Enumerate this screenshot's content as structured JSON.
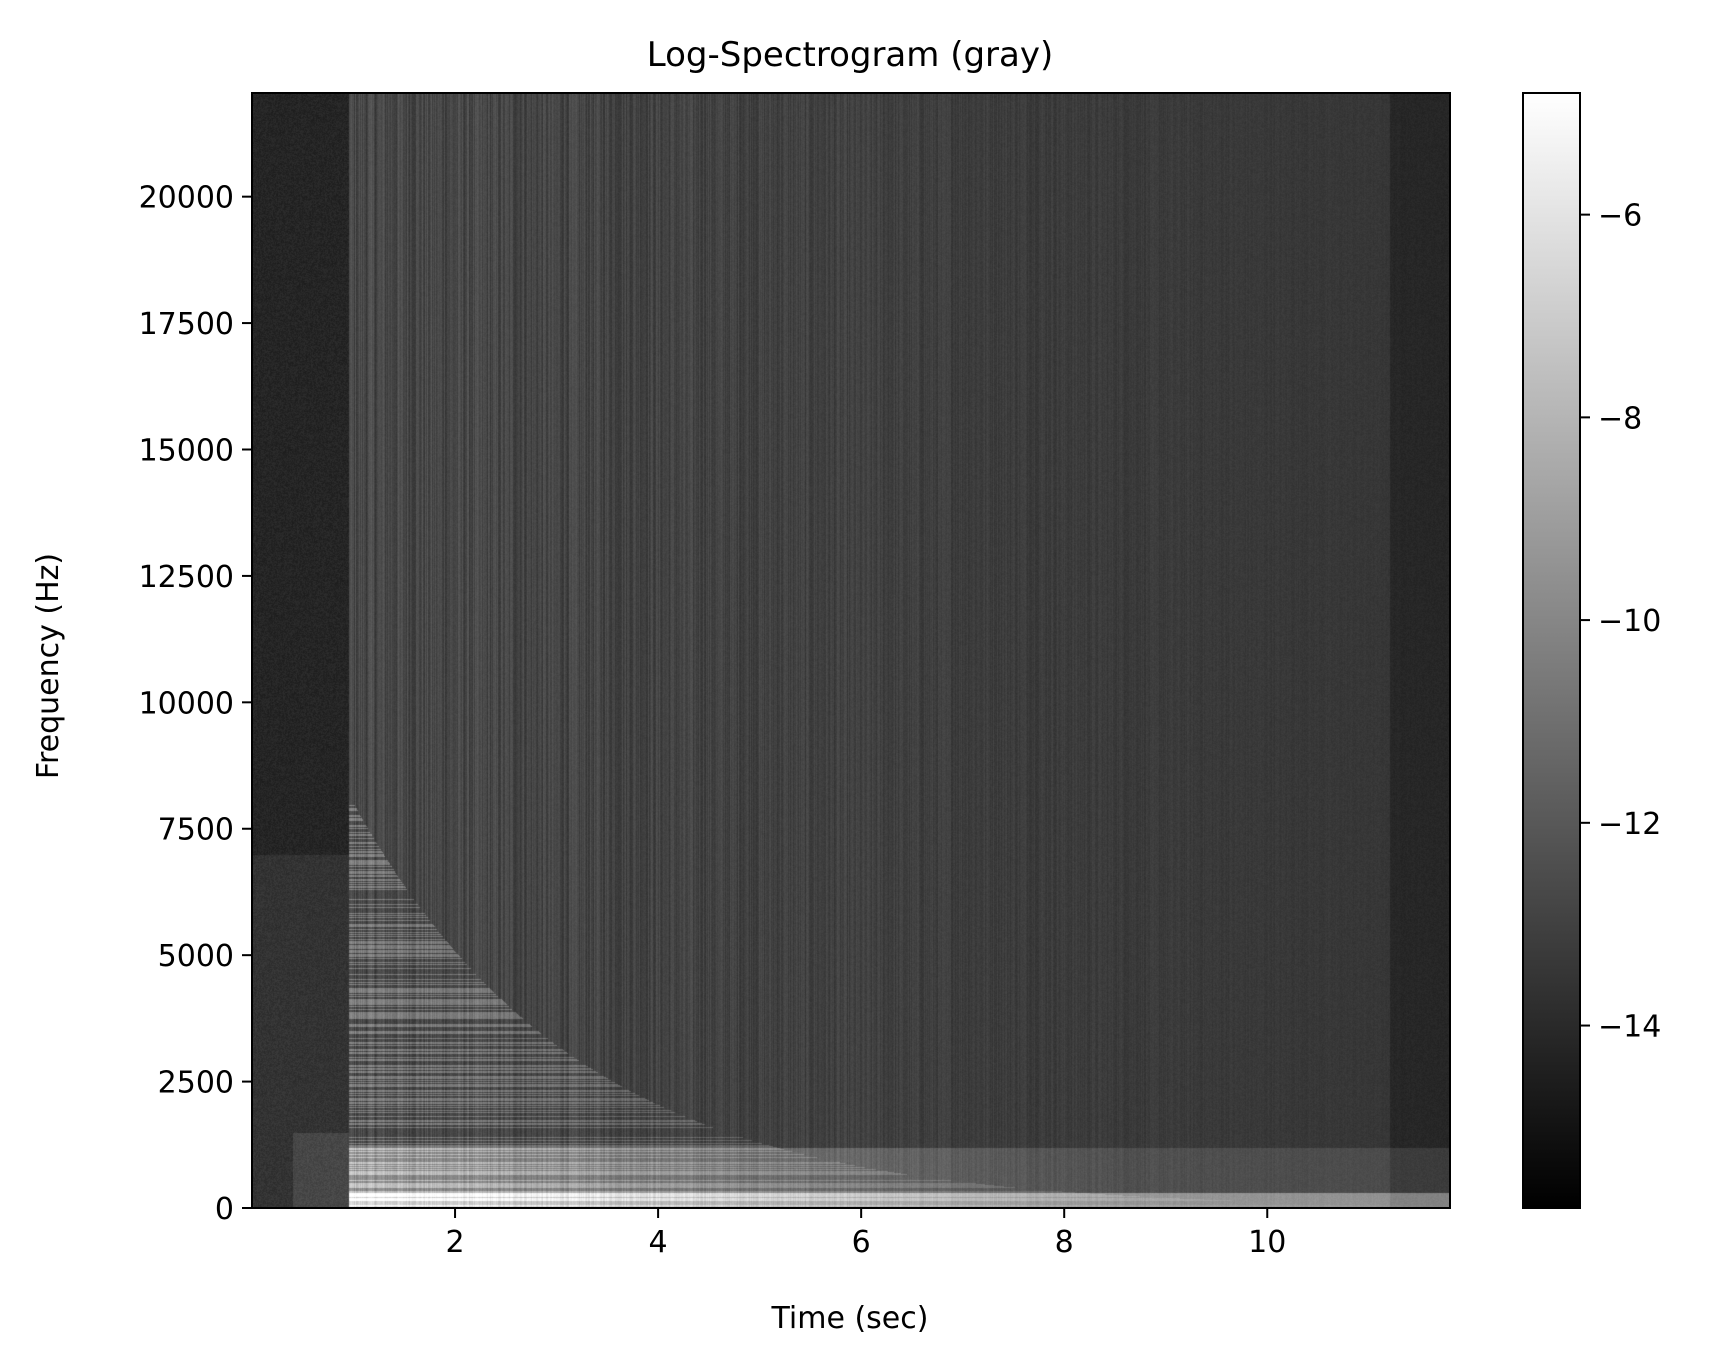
{
  "chart_data": {
    "type": "heatmap",
    "title": "Log-Spectrogram (gray)",
    "xlabel": "Time (sec)",
    "ylabel": "Frequency (Hz)",
    "colormap": "gray",
    "xlim": [
      0.0,
      11.8
    ],
    "ylim": [
      0,
      22050
    ],
    "x_ticks": [
      {
        "value": 2,
        "label": "2"
      },
      {
        "value": 4,
        "label": "4"
      },
      {
        "value": 6,
        "label": "6"
      },
      {
        "value": 8,
        "label": "8"
      },
      {
        "value": 10,
        "label": "10"
      }
    ],
    "y_ticks": [
      {
        "value": 0,
        "label": "0"
      },
      {
        "value": 2500,
        "label": "2500"
      },
      {
        "value": 5000,
        "label": "5000"
      },
      {
        "value": 7500,
        "label": "7500"
      },
      {
        "value": 10000,
        "label": "10000"
      },
      {
        "value": 12500,
        "label": "12500"
      },
      {
        "value": 15000,
        "label": "15000"
      },
      {
        "value": 17500,
        "label": "17500"
      },
      {
        "value": 20000,
        "label": "20000"
      }
    ],
    "colorbar": {
      "range": [
        -15.8,
        -4.8
      ],
      "ticks": [
        {
          "value": -6,
          "label": "−6"
        },
        {
          "value": -8,
          "label": "−8"
        },
        {
          "value": -10,
          "label": "−10"
        },
        {
          "value": -12,
          "label": "−12"
        },
        {
          "value": -14,
          "label": "−14"
        }
      ]
    },
    "grid": false
  }
}
